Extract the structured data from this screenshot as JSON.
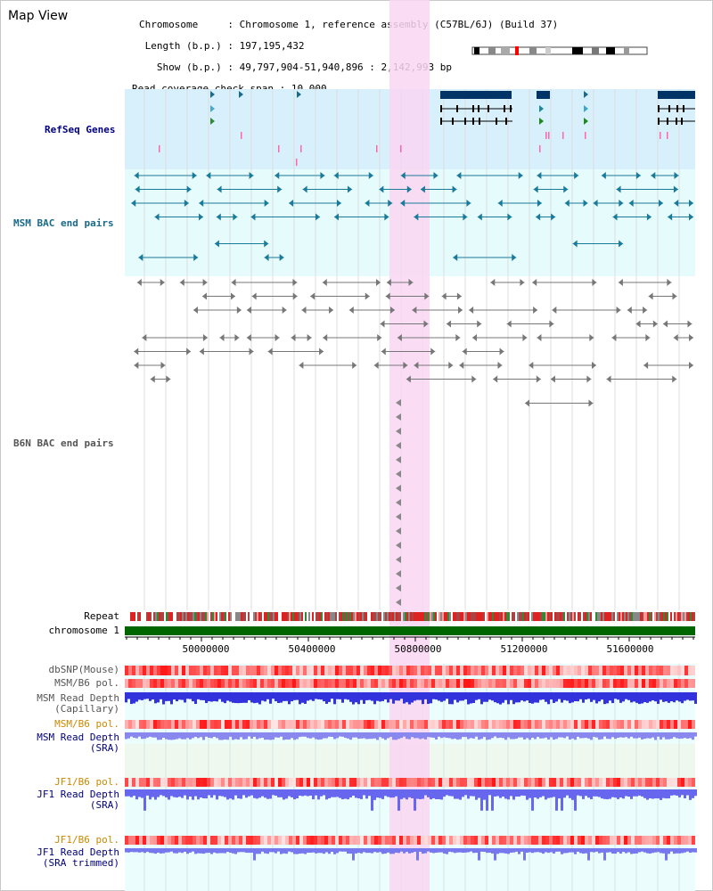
{
  "title": "Map View",
  "info": {
    "chromosome_key": "Chromosome",
    "chromosome_val": "Chromosome 1, reference assembly (C57BL/6J) (Build 37)",
    "length_key": "Length (b.p.)",
    "length_val": "197,195,432",
    "show_key": "Show (b.p.)",
    "show_val": "49,797,904-51,940,896 : 2,142,993 bp",
    "coverage_key": "Read coverage check span",
    "coverage_val": "10,000"
  },
  "tracks": {
    "refseq": "RefSeq Genes",
    "msm_bac": "MSM BAC end pairs",
    "b6n_bac": "B6N BAC end pairs",
    "repeat": "Repeat",
    "chromosome": "chromosome 1",
    "dbsnp": "dbSNP(Mouse)",
    "msm_b6_pol_1": "MSM/B6 pol.",
    "msm_depth_cap_1": "MSM Read Depth",
    "msm_depth_cap_2": "(Capillary)",
    "msm_b6_pol_2": "MSM/B6 pol.",
    "msm_depth_sra_1": "MSM Read Depth",
    "msm_depth_sra_2": "(SRA)",
    "jf1_b6_pol_1": "JF1/B6 pol.",
    "jf1_depth_sra_1": "JF1 Read Depth",
    "jf1_depth_sra_2": "(SRA)",
    "jf1_b6_pol_2": "JF1/B6 pol.",
    "jf1_depth_trim_1": "JF1 Read Depth",
    "jf1_depth_trim_2": "(SRA trimmed)"
  },
  "axis": {
    "ticks": [
      "50000000",
      "50400000",
      "50800000",
      "51200000",
      "51600000"
    ]
  },
  "colors": {
    "refseq_bg": "#d8f0fb",
    "msm_bg": "#e6fbfb",
    "highlight": "#f9d6f2",
    "gene": "#003366",
    "msm_feature": "#1a7a9a",
    "b6n_feature": "#777777",
    "chromosome_bar": "#006600",
    "label_navy": "#000080",
    "label_orange": "#cc8800",
    "label_gray": "#555555"
  }
}
